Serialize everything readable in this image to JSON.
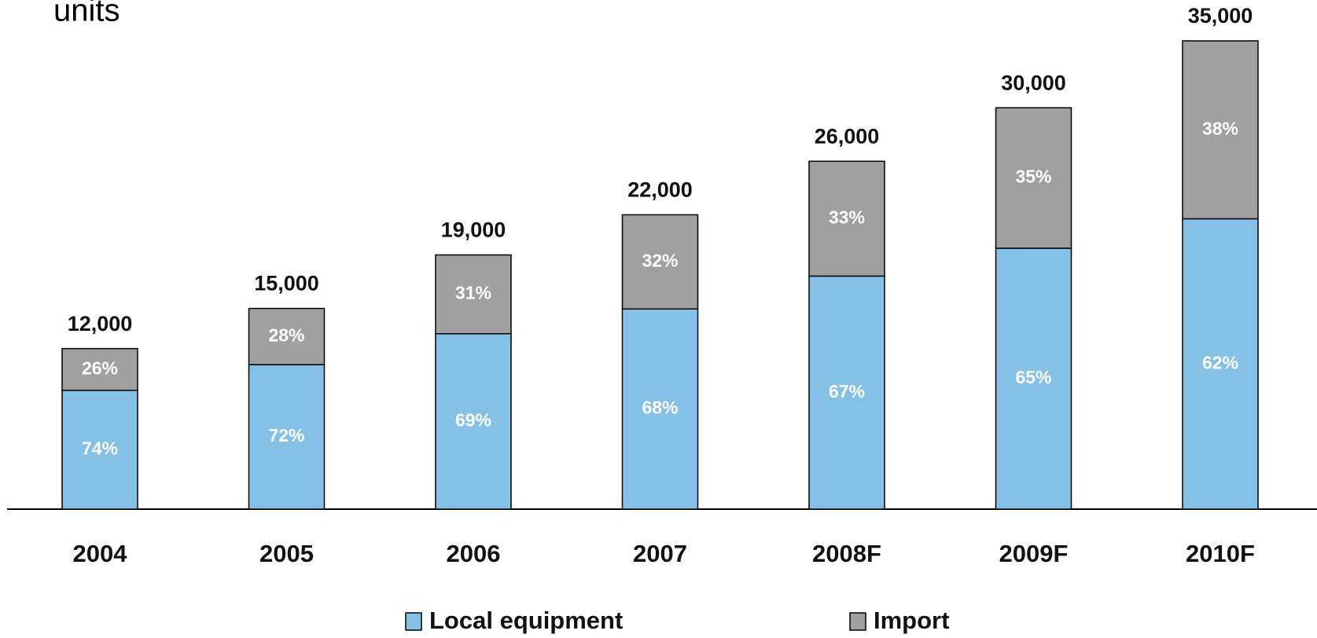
{
  "chart_data": {
    "type": "stacked_share_bar",
    "unit_label": "units",
    "categories": [
      "2004",
      "2005",
      "2006",
      "2007",
      "2008F",
      "2009F",
      "2010F"
    ],
    "totals": {
      "values": [
        12000,
        15000,
        19000,
        22000,
        26000,
        30000,
        35000
      ],
      "value_labels": [
        "12,000",
        "15,000",
        "19,000",
        "22,000",
        "26,000",
        "30,000",
        "35,000"
      ]
    },
    "series": [
      {
        "name": "Local equipment",
        "color": "#85c1e6",
        "values": [
          74,
          72,
          69,
          68,
          67,
          65,
          62
        ],
        "value_labels": [
          "74%",
          "72%",
          "69%",
          "68%",
          "67%",
          "65%",
          "62%"
        ]
      },
      {
        "name": "Import",
        "color": "#a0a0a0",
        "values": [
          26,
          28,
          31,
          32,
          33,
          35,
          38
        ],
        "value_labels": [
          "26%",
          "28%",
          "31%",
          "32%",
          "33%",
          "35%",
          "38%"
        ]
      }
    ],
    "legend": "bottom"
  }
}
